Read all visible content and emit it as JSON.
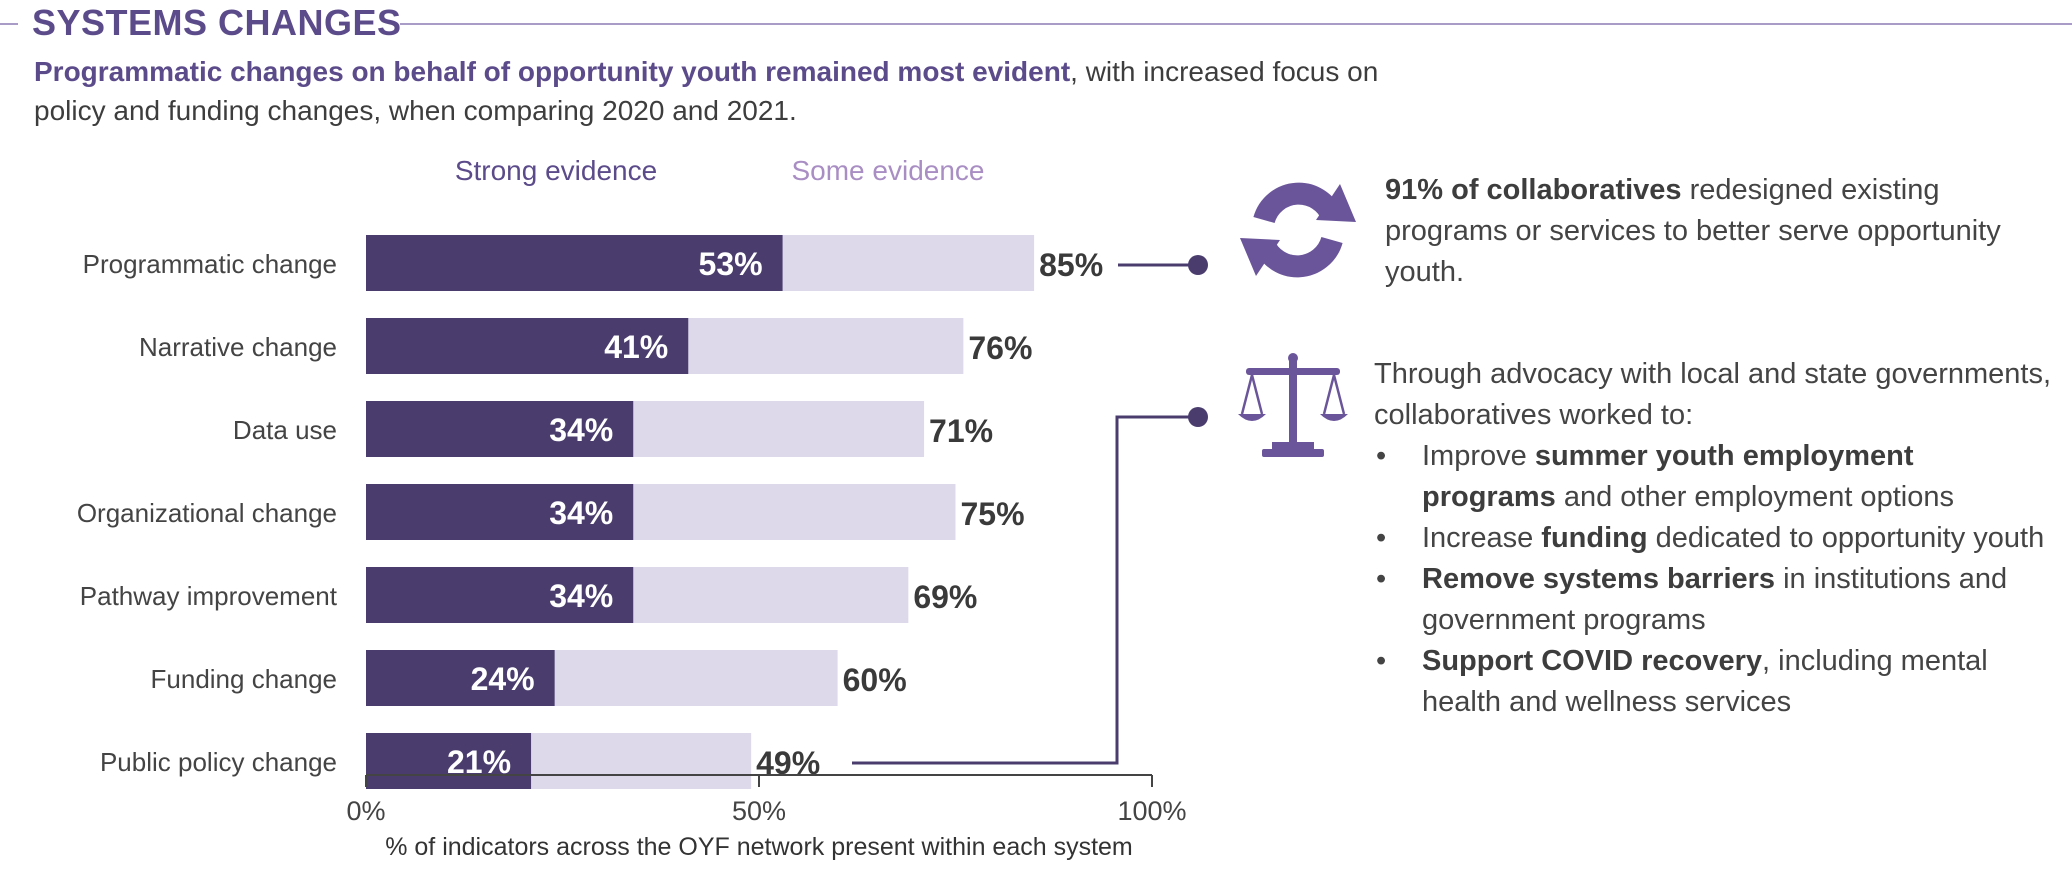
{
  "header": {
    "title": "SYSTEMS CHANGES",
    "subtitle_bold": "Programmatic changes on behalf of opportunity youth remained most evident",
    "subtitle_rest": ", with increased focus on policy and funding changes, when comparing 2020 and 2021."
  },
  "chart_data": {
    "type": "bar",
    "orientation": "horizontal",
    "stacked_overlay": true,
    "categories": [
      "Programmatic change",
      "Narrative change",
      "Data use",
      "Organizational change",
      "Pathway improvement",
      "Funding change",
      "Public policy change"
    ],
    "series": [
      {
        "name": "Strong evidence",
        "values": [
          53,
          41,
          34,
          34,
          34,
          24,
          21
        ],
        "labels": [
          "53%",
          "41%",
          "34%",
          "34%",
          "34%",
          "24%",
          "21%"
        ],
        "color": "#4a3d6e"
      },
      {
        "name": "Some evidence",
        "values": [
          85,
          76,
          71,
          75,
          69,
          60,
          49
        ],
        "labels": [
          "85%",
          "76%",
          "71%",
          "75%",
          "69%",
          "60%",
          "49%"
        ],
        "color": "#ddd9ea"
      }
    ],
    "xlim": [
      0,
      100
    ],
    "xticks": [
      "0%",
      "50%",
      "100%"
    ],
    "xlabel": "% of indicators across the OYF network present within each system",
    "legend_position": "top",
    "grid": false
  },
  "panels": {
    "programs": {
      "icon": "refresh-arrows-icon",
      "bold": "91% of collaboratives",
      "text": " redesigned existing programs or services to better serve opportunity youth."
    },
    "policy": {
      "icon": "scales-icon",
      "intro": "Through advocacy with local and state governments, collaboratives worked to:",
      "bullets": [
        {
          "pre": "Improve ",
          "bold": "summer youth employment programs",
          "post": " and other employment options"
        },
        {
          "pre": "Increase ",
          "bold": "funding",
          "post": " dedicated to opportunity youth"
        },
        {
          "pre": "",
          "bold": "Remove systems barriers",
          "post": " in institutions and government programs"
        },
        {
          "pre": "",
          "bold": "Support COVID recovery",
          "post": ", including mental health and wellness services"
        }
      ]
    }
  },
  "colors": {
    "accent": "#5c4b8a",
    "strong_bar": "#4a3d6e",
    "some_bar": "#ddd9ea",
    "some_legend": "#a98ec4",
    "icon": "#6a559a"
  }
}
